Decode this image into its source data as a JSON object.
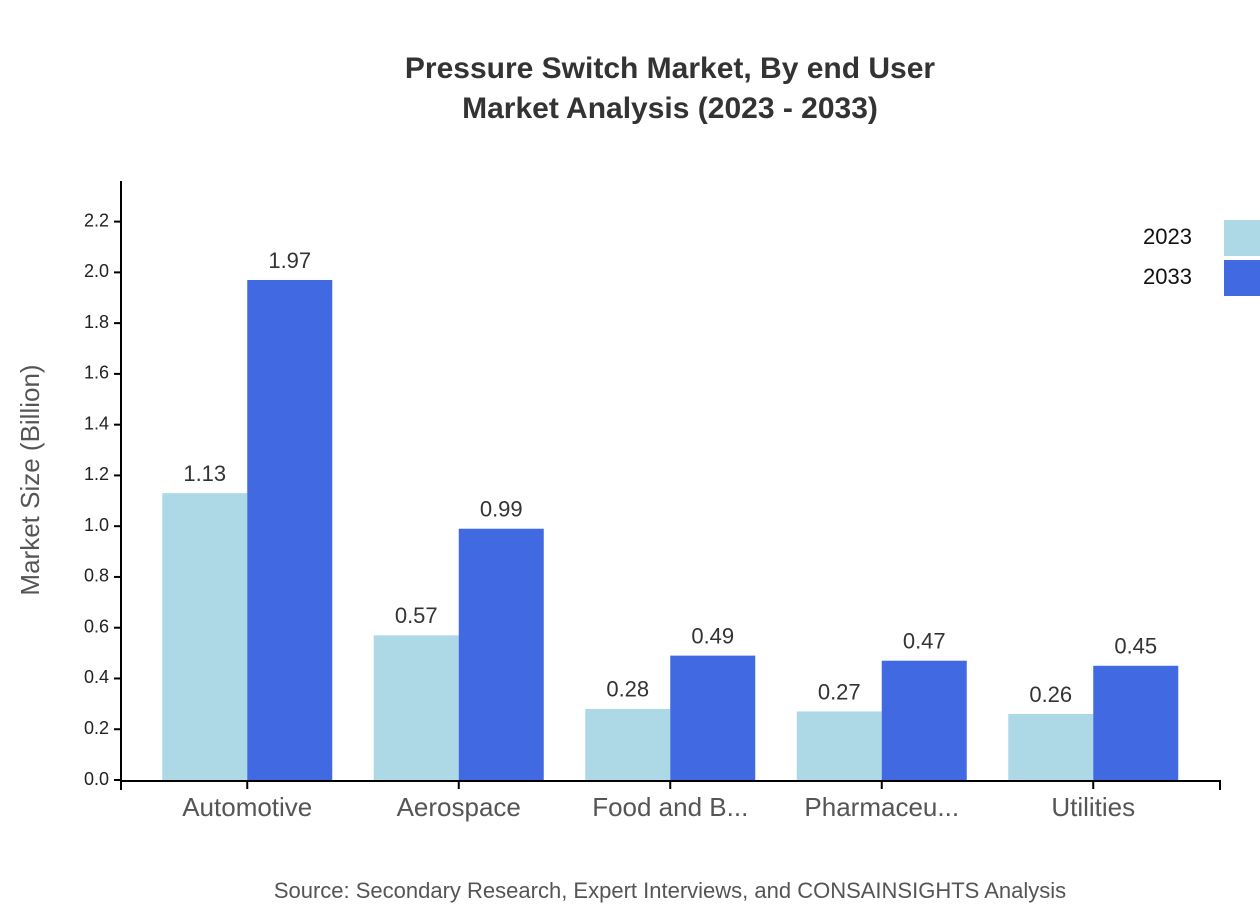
{
  "chart_data": {
    "type": "bar",
    "title": "Pressure Switch Market, By end User",
    "subtitle": "Market Analysis (2023 - 2033)",
    "y_label": "Market Size (Billion)",
    "source": "Source: Secondary Research, Expert Interviews, and CONSAINSIGHTS Analysis",
    "categories": [
      "Automotive",
      "Aerospace",
      "Food and B...",
      "Pharmaceu...",
      "Utilities"
    ],
    "series": [
      {
        "name": "2023",
        "color": "#add8e6",
        "values": [
          1.13,
          0.57,
          0.28,
          0.27,
          0.26
        ]
      },
      {
        "name": "2033",
        "color": "#4169e1",
        "values": [
          1.97,
          0.99,
          0.49,
          0.47,
          0.45
        ]
      }
    ],
    "ylim": [
      0,
      2.36
    ],
    "yticks": [
      {
        "value": 0,
        "label": "0.0"
      },
      0.2,
      0.4,
      0.6,
      0.8,
      {
        "value": 1,
        "label": "1.0"
      },
      1.2,
      1.4,
      1.6,
      1.8,
      {
        "value": 2,
        "label": "2.0"
      },
      2.2
    ],
    "legend": "top-right"
  }
}
